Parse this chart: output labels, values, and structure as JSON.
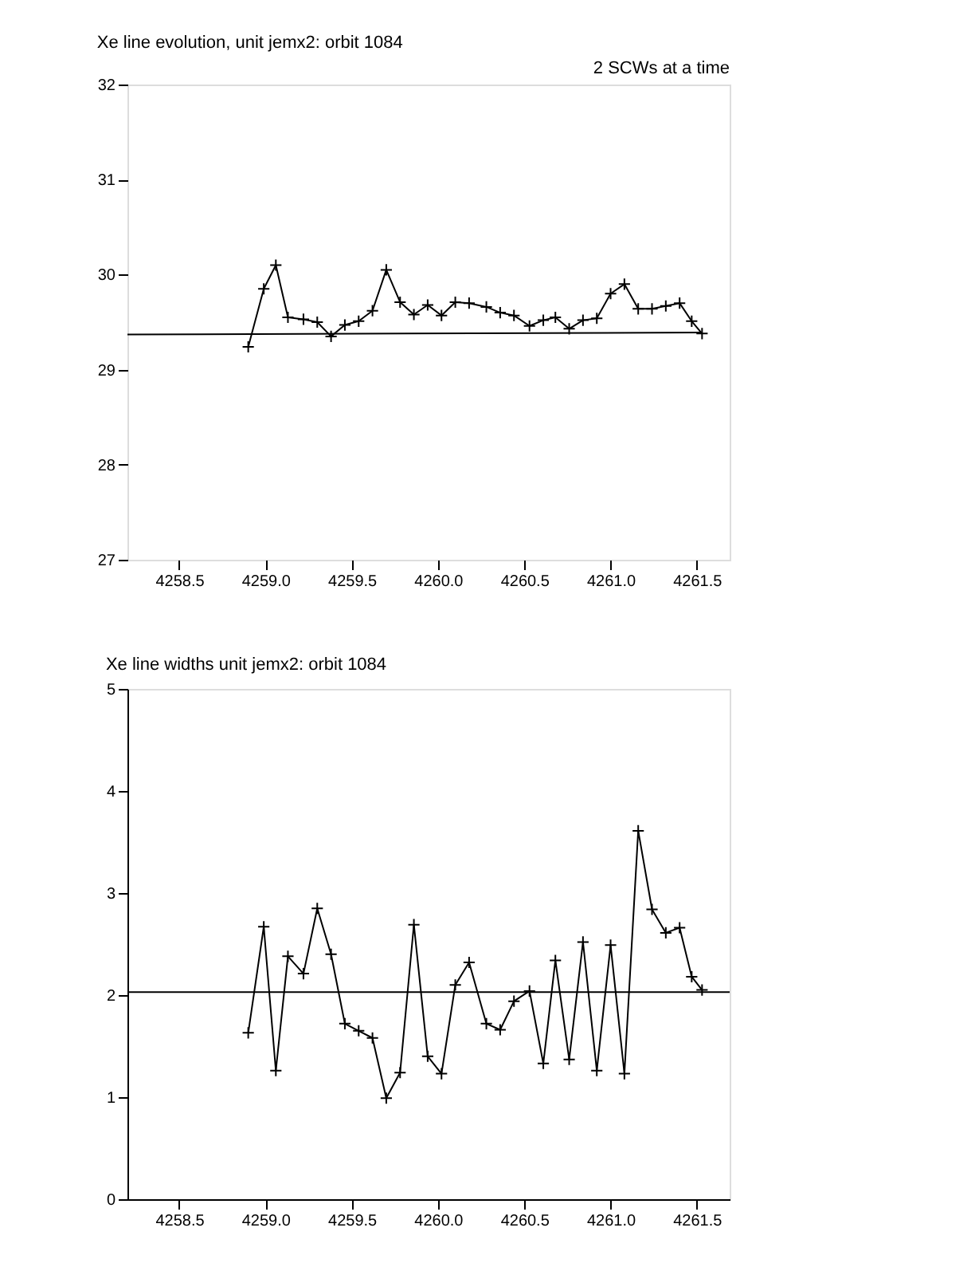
{
  "chart_data": [
    {
      "type": "line",
      "title": "Xe line evolution, unit jemx2: orbit 1084",
      "annotations": [
        "2 SCWs at a time"
      ],
      "xlim": [
        4258.2,
        4261.69
      ],
      "ylim": [
        27,
        32
      ],
      "xticks": [
        4258.5,
        {
          "value": 4259,
          "label": "4259.0"
        },
        4259.5,
        {
          "value": 4260,
          "label": "4260.0"
        },
        4260.5,
        {
          "value": 4261,
          "label": "4261.0"
        },
        4261.5
      ],
      "yticks": [
        27,
        28,
        29,
        30,
        31,
        32
      ],
      "grid": false,
      "series": [
        {
          "color": "#000000",
          "marker": "cross",
          "x": [
            4258.9,
            4258.99,
            4259.06,
            4259.13,
            4259.22,
            4259.3,
            4259.38,
            4259.46,
            4259.54,
            4259.62,
            4259.7,
            4259.78,
            4259.86,
            4259.94,
            4260.02,
            4260.1,
            4260.18,
            4260.28,
            4260.36,
            4260.44,
            4260.53,
            4260.61,
            4260.68,
            4260.76,
            4260.84,
            4260.92,
            4261.0,
            4261.08,
            4261.16,
            4261.24,
            4261.32,
            4261.4,
            4261.47,
            4261.53
          ],
          "values": [
            29.24,
            29.85,
            30.1,
            29.55,
            29.53,
            29.5,
            29.35,
            29.47,
            29.51,
            29.62,
            30.05,
            29.71,
            29.58,
            29.68,
            29.57,
            29.71,
            29.7,
            29.66,
            29.6,
            29.57,
            29.46,
            29.52,
            29.55,
            29.43,
            29.52,
            29.54,
            29.8,
            29.9,
            29.64,
            29.64,
            29.67,
            29.7,
            29.51,
            29.38
          ]
        },
        {
          "color": "#000000",
          "x": [
            4258.2,
            4261.53
          ],
          "values": [
            29.37,
            29.39
          ]
        }
      ]
    },
    {
      "type": "line",
      "title": "Xe line widths unit jemx2: orbit 1084",
      "xlim": [
        4258.2,
        4261.69
      ],
      "ylim": [
        0,
        5
      ],
      "xticks": [
        4258.5,
        {
          "value": 4259,
          "label": "4259.0"
        },
        4259.5,
        {
          "value": 4260,
          "label": "4260.0"
        },
        4260.5,
        {
          "value": 4261,
          "label": "4261.0"
        },
        4261.5
      ],
      "yticks": [
        0,
        1,
        2,
        3,
        4,
        5
      ],
      "grid": false,
      "ref_lines": [
        {
          "axis": "y",
          "value": 2.03,
          "color": "#000000"
        }
      ],
      "series": [
        {
          "color": "#000000",
          "marker": "cross",
          "x": [
            4258.9,
            4258.99,
            4259.06,
            4259.13,
            4259.22,
            4259.3,
            4259.38,
            4259.46,
            4259.54,
            4259.62,
            4259.7,
            4259.78,
            4259.86,
            4259.94,
            4260.02,
            4260.1,
            4260.18,
            4260.28,
            4260.36,
            4260.44,
            4260.53,
            4260.61,
            4260.68,
            4260.76,
            4260.84,
            4260.92,
            4261.0,
            4261.08,
            4261.16,
            4261.24,
            4261.32,
            4261.4,
            4261.47,
            4261.53
          ],
          "values": [
            1.63,
            2.67,
            1.26,
            2.38,
            2.21,
            2.85,
            2.4,
            1.72,
            1.65,
            1.58,
            0.99,
            1.24,
            2.69,
            1.4,
            1.23,
            2.1,
            2.32,
            1.72,
            1.66,
            1.94,
            2.04,
            1.33,
            2.34,
            1.37,
            2.52,
            1.26,
            2.49,
            1.23,
            3.61,
            2.84,
            2.61,
            2.66,
            2.18,
            2.05
          ]
        }
      ]
    }
  ]
}
